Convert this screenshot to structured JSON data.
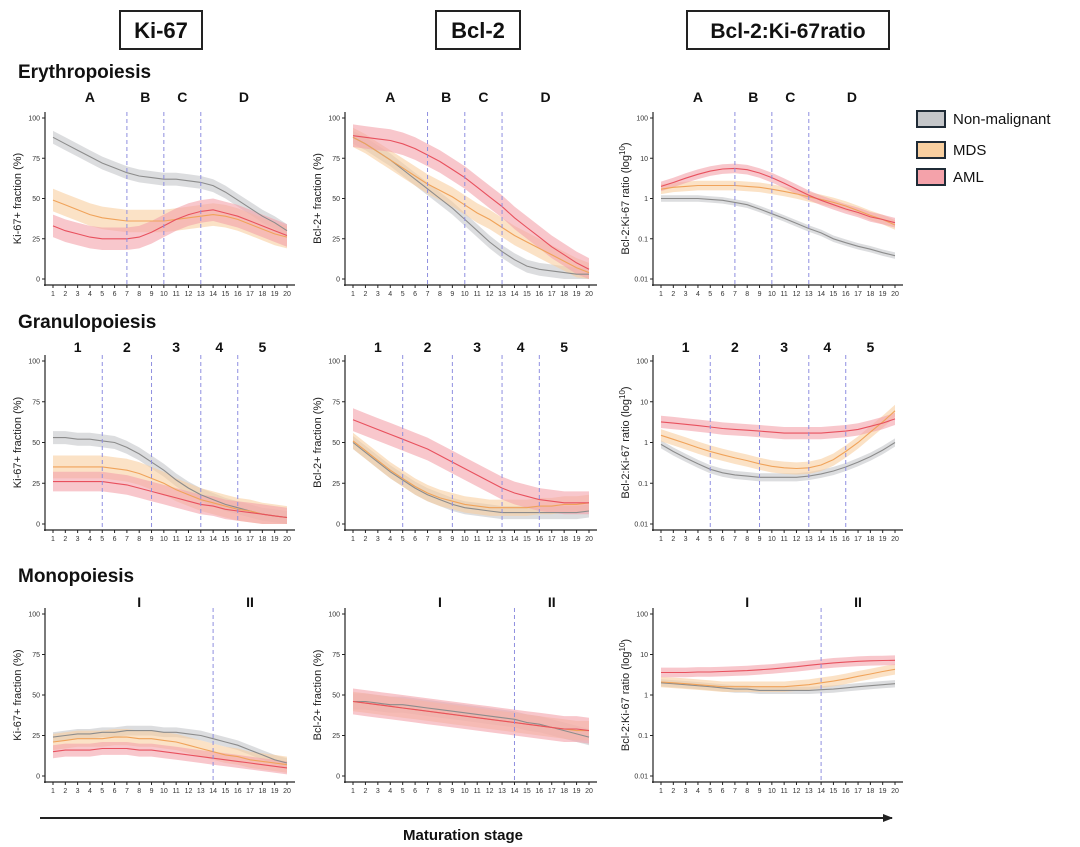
{
  "colors": {
    "non_malignant": "#8c8c8c",
    "mds": "#f0a35a",
    "aml": "#e8515e",
    "band_non_malignant": "#c4c6c9",
    "band_mds": "#f8cfa0",
    "band_aml": "#f4a2aa",
    "vline": "#8f8fe0"
  },
  "column_headers": [
    "Ki-67",
    "Bcl-2",
    "Bcl-2:Ki-67ratio"
  ],
  "row_titles": [
    "Erythropoiesis",
    "Granulopoiesis",
    "Monopoiesis"
  ],
  "legend": [
    {
      "key": "non_malignant",
      "label": "Non-malignant"
    },
    {
      "key": "mds",
      "label": "MDS"
    },
    {
      "key": "aml",
      "label": "AML"
    }
  ],
  "x_axis_label": "Maturation stage",
  "x_ticks": [
    "1",
    "2",
    "3",
    "4",
    "5",
    "6",
    "7",
    "8",
    "9",
    "10",
    "11",
    "12",
    "13",
    "14",
    "15",
    "16",
    "17",
    "18",
    "19",
    "20"
  ],
  "y_labels": {
    "ki67": "Ki-67+ fraction (%)",
    "bcl2": "Bcl-2+ fraction (%)",
    "ratio_prefix": "Bcl-2:Ki-67 ratio (log",
    "ratio_sup": "10",
    "ratio_suffix": ")"
  },
  "y_ticks": {
    "linear": [
      "0",
      "25",
      "50",
      "75",
      "100"
    ],
    "log": [
      "0.01",
      "0.1",
      "1",
      "10",
      "100"
    ]
  },
  "chart_data": [
    {
      "row": "Erythropoiesis",
      "column": "Ki-67",
      "type": "line",
      "yscale": "linear",
      "ylim": [
        0,
        100
      ],
      "x": [
        1,
        2,
        3,
        4,
        5,
        6,
        7,
        8,
        9,
        10,
        11,
        12,
        13,
        14,
        15,
        16,
        17,
        18,
        19,
        20
      ],
      "stage_boundaries": [
        7,
        10,
        13
      ],
      "stage_labels": [
        {
          "label": "A",
          "x": 4
        },
        {
          "label": "B",
          "x": 8.5
        },
        {
          "label": "C",
          "x": 11.5
        },
        {
          "label": "D",
          "x": 16.5
        }
      ],
      "series": [
        {
          "name": "Non-malignant",
          "values": [
            88,
            84,
            80,
            76,
            72,
            69,
            66,
            64,
            63,
            62,
            62,
            61,
            60,
            58,
            54,
            49,
            44,
            39,
            35,
            30
          ],
          "band": 4
        },
        {
          "name": "MDS",
          "values": [
            49,
            46,
            43,
            40,
            38,
            37,
            36,
            36,
            36,
            36,
            37,
            38,
            39,
            40,
            39,
            37,
            34,
            31,
            28,
            26
          ],
          "band": 7
        },
        {
          "name": "AML",
          "values": [
            33,
            30,
            28,
            26,
            25,
            25,
            25,
            26,
            29,
            33,
            37,
            40,
            42,
            43,
            41,
            39,
            36,
            33,
            30,
            27
          ],
          "band": 7
        }
      ]
    },
    {
      "row": "Erythropoiesis",
      "column": "Bcl-2",
      "type": "line",
      "yscale": "linear",
      "ylim": [
        0,
        100
      ],
      "x": [
        1,
        2,
        3,
        4,
        5,
        6,
        7,
        8,
        9,
        10,
        11,
        12,
        13,
        14,
        15,
        16,
        17,
        18,
        19,
        20
      ],
      "stage_boundaries": [
        7,
        10,
        13
      ],
      "stage_labels": [
        {
          "label": "A",
          "x": 4
        },
        {
          "label": "B",
          "x": 8.5
        },
        {
          "label": "C",
          "x": 11.5
        },
        {
          "label": "D",
          "x": 16.5
        }
      ],
      "series": [
        {
          "name": "Non-malignant",
          "values": [
            88,
            84,
            79,
            74,
            68,
            62,
            56,
            50,
            44,
            37,
            30,
            23,
            17,
            12,
            8,
            6,
            5,
            4,
            3,
            3
          ],
          "band": 4
        },
        {
          "name": "MDS",
          "values": [
            88,
            84,
            79,
            74,
            69,
            64,
            59,
            55,
            51,
            46,
            41,
            37,
            32,
            27,
            23,
            19,
            15,
            11,
            7,
            4
          ],
          "band": 6
        },
        {
          "name": "AML",
          "values": [
            89,
            88,
            87,
            86,
            84,
            81,
            77,
            73,
            68,
            63,
            57,
            51,
            45,
            38,
            32,
            26,
            20,
            15,
            10,
            6
          ],
          "band": 7
        }
      ]
    },
    {
      "row": "Erythropoiesis",
      "column": "Bcl-2:Ki-67ratio",
      "type": "line",
      "yscale": "log",
      "ylim": [
        0.01,
        100
      ],
      "x": [
        1,
        2,
        3,
        4,
        5,
        6,
        7,
        8,
        9,
        10,
        11,
        12,
        13,
        14,
        15,
        16,
        17,
        18,
        19,
        20
      ],
      "stage_boundaries": [
        7,
        10,
        13
      ],
      "stage_labels": [
        {
          "label": "A",
          "x": 4
        },
        {
          "label": "B",
          "x": 8.5
        },
        {
          "label": "C",
          "x": 11.5
        },
        {
          "label": "D",
          "x": 16.5
        }
      ],
      "series": [
        {
          "name": "Non-malignant",
          "values": [
            1.0,
            1.0,
            1.0,
            1.0,
            0.95,
            0.9,
            0.8,
            0.7,
            0.55,
            0.42,
            0.32,
            0.24,
            0.18,
            0.14,
            0.1,
            0.08,
            0.065,
            0.055,
            0.045,
            0.038
          ],
          "band": 0.08
        },
        {
          "name": "MDS",
          "values": [
            1.7,
            1.9,
            2.0,
            2.1,
            2.1,
            2.1,
            2.1,
            2.0,
            1.9,
            1.7,
            1.5,
            1.3,
            1.1,
            0.95,
            0.8,
            0.65,
            0.5,
            0.38,
            0.3,
            0.22
          ],
          "band": 0.12
        },
        {
          "name": "AML",
          "values": [
            2.0,
            2.5,
            3.2,
            4.0,
            4.8,
            5.4,
            5.6,
            5.2,
            4.3,
            3.3,
            2.4,
            1.7,
            1.2,
            0.9,
            0.7,
            0.55,
            0.45,
            0.35,
            0.3,
            0.25
          ],
          "band": 0.12
        }
      ]
    },
    {
      "row": "Granulopoiesis",
      "column": "Ki-67",
      "type": "line",
      "yscale": "linear",
      "ylim": [
        0,
        100
      ],
      "x": [
        1,
        2,
        3,
        4,
        5,
        6,
        7,
        8,
        9,
        10,
        11,
        12,
        13,
        14,
        15,
        16,
        17,
        18,
        19,
        20
      ],
      "stage_boundaries": [
        5,
        9,
        13,
        16
      ],
      "stage_labels": [
        {
          "label": "1",
          "x": 3
        },
        {
          "label": "2",
          "x": 7
        },
        {
          "label": "3",
          "x": 11
        },
        {
          "label": "4",
          "x": 14.5
        },
        {
          "label": "5",
          "x": 18
        }
      ],
      "series": [
        {
          "name": "Non-malignant",
          "values": [
            53,
            53,
            52,
            52,
            51,
            50,
            47,
            43,
            38,
            33,
            27,
            22,
            18,
            15,
            12,
            10,
            8,
            6,
            5,
            4
          ],
          "band": 4
        },
        {
          "name": "MDS",
          "values": [
            35,
            35,
            35,
            35,
            35,
            34,
            33,
            31,
            28,
            25,
            21,
            18,
            15,
            13,
            11,
            9,
            8,
            6,
            5,
            4
          ],
          "band": 7
        },
        {
          "name": "AML",
          "values": [
            26,
            26,
            26,
            26,
            26,
            25,
            24,
            22,
            20,
            18,
            16,
            14,
            12,
            11,
            9,
            8,
            7,
            6,
            5,
            4
          ],
          "band": 6
        }
      ]
    },
    {
      "row": "Granulopoiesis",
      "column": "Bcl-2",
      "type": "line",
      "yscale": "linear",
      "ylim": [
        0,
        100
      ],
      "x": [
        1,
        2,
        3,
        4,
        5,
        6,
        7,
        8,
        9,
        10,
        11,
        12,
        13,
        14,
        15,
        16,
        17,
        18,
        19,
        20
      ],
      "stage_boundaries": [
        5,
        9,
        13,
        16
      ],
      "stage_labels": [
        {
          "label": "1",
          "x": 3
        },
        {
          "label": "2",
          "x": 7
        },
        {
          "label": "3",
          "x": 11
        },
        {
          "label": "4",
          "x": 14.5
        },
        {
          "label": "5",
          "x": 18
        }
      ],
      "series": [
        {
          "name": "Non-malignant",
          "values": [
            50,
            44,
            38,
            32,
            27,
            22,
            18,
            15,
            12,
            10,
            9,
            8,
            7,
            7,
            7,
            7,
            7,
            7,
            7,
            8
          ],
          "band": 4
        },
        {
          "name": "MDS",
          "values": [
            51,
            45,
            39,
            33,
            28,
            23,
            19,
            16,
            14,
            12,
            11,
            10,
            10,
            10,
            10,
            11,
            11,
            12,
            12,
            13
          ],
          "band": 5
        },
        {
          "name": "AML",
          "values": [
            64,
            61,
            58,
            55,
            52,
            49,
            46,
            42,
            38,
            34,
            30,
            26,
            22,
            19,
            17,
            15,
            14,
            13,
            13,
            13
          ],
          "band": 7
        }
      ]
    },
    {
      "row": "Granulopoiesis",
      "column": "Bcl-2:Ki-67ratio",
      "type": "line",
      "yscale": "log",
      "ylim": [
        0.01,
        100
      ],
      "x": [
        1,
        2,
        3,
        4,
        5,
        6,
        7,
        8,
        9,
        10,
        11,
        12,
        13,
        14,
        15,
        16,
        17,
        18,
        19,
        20
      ],
      "stage_boundaries": [
        5,
        9,
        13,
        16
      ],
      "stage_labels": [
        {
          "label": "1",
          "x": 3
        },
        {
          "label": "2",
          "x": 7
        },
        {
          "label": "3",
          "x": 11
        },
        {
          "label": "4",
          "x": 14.5
        },
        {
          "label": "5",
          "x": 18
        }
      ],
      "series": [
        {
          "name": "Non-malignant",
          "values": [
            0.9,
            0.6,
            0.42,
            0.3,
            0.22,
            0.18,
            0.16,
            0.15,
            0.14,
            0.14,
            0.14,
            0.14,
            0.15,
            0.17,
            0.2,
            0.25,
            0.33,
            0.45,
            0.65,
            1.0
          ],
          "band": 0.1
        },
        {
          "name": "MDS",
          "values": [
            1.5,
            1.2,
            0.95,
            0.75,
            0.6,
            0.5,
            0.42,
            0.36,
            0.3,
            0.26,
            0.24,
            0.23,
            0.24,
            0.28,
            0.38,
            0.6,
            1.0,
            1.8,
            3.2,
            6.0
          ],
          "band": 0.15
        },
        {
          "name": "AML",
          "values": [
            3.2,
            3.0,
            2.8,
            2.6,
            2.4,
            2.2,
            2.1,
            2.0,
            1.9,
            1.8,
            1.7,
            1.7,
            1.7,
            1.7,
            1.8,
            1.9,
            2.1,
            2.5,
            3.0,
            3.8
          ],
          "band": 0.15
        }
      ]
    },
    {
      "row": "Monopoiesis",
      "column": "Ki-67",
      "type": "line",
      "yscale": "linear",
      "ylim": [
        0,
        100
      ],
      "x": [
        1,
        2,
        3,
        4,
        5,
        6,
        7,
        8,
        9,
        10,
        11,
        12,
        13,
        14,
        15,
        16,
        17,
        18,
        19,
        20
      ],
      "stage_boundaries": [
        14
      ],
      "stage_labels": [
        {
          "label": "I",
          "x": 8
        },
        {
          "label": "II",
          "x": 17
        }
      ],
      "series": [
        {
          "name": "Non-malignant",
          "values": [
            24,
            25,
            26,
            26,
            27,
            27,
            28,
            28,
            28,
            27,
            27,
            26,
            25,
            23,
            21,
            19,
            16,
            13,
            10,
            8
          ],
          "band": 3
        },
        {
          "name": "MDS",
          "values": [
            21,
            22,
            23,
            23,
            23,
            24,
            24,
            23,
            23,
            22,
            21,
            19,
            17,
            15,
            13,
            12,
            10,
            9,
            8,
            7
          ],
          "band": 5
        },
        {
          "name": "AML",
          "values": [
            15,
            16,
            16,
            16,
            17,
            17,
            17,
            16,
            16,
            15,
            14,
            13,
            12,
            11,
            10,
            9,
            8,
            7,
            6,
            5
          ],
          "band": 4
        }
      ]
    },
    {
      "row": "Monopoiesis",
      "column": "Bcl-2",
      "type": "line",
      "yscale": "linear",
      "ylim": [
        0,
        100
      ],
      "x": [
        1,
        2,
        3,
        4,
        5,
        6,
        7,
        8,
        9,
        10,
        11,
        12,
        13,
        14,
        15,
        16,
        17,
        18,
        19,
        20
      ],
      "stage_boundaries": [
        14
      ],
      "stage_labels": [
        {
          "label": "I",
          "x": 8
        },
        {
          "label": "II",
          "x": 17
        }
      ],
      "series": [
        {
          "name": "Non-malignant",
          "values": [
            46,
            46,
            45,
            44,
            44,
            43,
            42,
            41,
            40,
            39,
            38,
            37,
            36,
            35,
            33,
            32,
            30,
            28,
            26,
            24
          ],
          "band": 5
        },
        {
          "name": "MDS",
          "values": [
            46,
            45,
            44,
            43,
            42,
            41,
            40,
            39,
            38,
            37,
            36,
            35,
            34,
            33,
            32,
            31,
            30,
            29,
            28,
            28
          ],
          "band": 6
        },
        {
          "name": "AML",
          "values": [
            46,
            45,
            44,
            43,
            42,
            41,
            40,
            39,
            38,
            37,
            36,
            35,
            34,
            33,
            32,
            31,
            30,
            29,
            29,
            28
          ],
          "band": 8
        }
      ]
    },
    {
      "row": "Monopoiesis",
      "column": "Bcl-2:Ki-67ratio",
      "type": "line",
      "yscale": "log",
      "ylim": [
        0.01,
        100
      ],
      "x": [
        1,
        2,
        3,
        4,
        5,
        6,
        7,
        8,
        9,
        10,
        11,
        12,
        13,
        14,
        15,
        16,
        17,
        18,
        19,
        20
      ],
      "stage_boundaries": [
        14
      ],
      "stage_labels": [
        {
          "label": "I",
          "x": 8
        },
        {
          "label": "II",
          "x": 17
        }
      ],
      "series": [
        {
          "name": "Non-malignant",
          "values": [
            2.0,
            1.9,
            1.8,
            1.7,
            1.6,
            1.5,
            1.4,
            1.4,
            1.3,
            1.3,
            1.3,
            1.3,
            1.3,
            1.35,
            1.4,
            1.5,
            1.6,
            1.7,
            1.8,
            1.9
          ],
          "band": 0.09
        },
        {
          "name": "MDS",
          "values": [
            2.1,
            2.0,
            1.9,
            1.8,
            1.7,
            1.6,
            1.6,
            1.6,
            1.6,
            1.6,
            1.6,
            1.7,
            1.8,
            2.0,
            2.2,
            2.5,
            2.9,
            3.3,
            3.8,
            4.3
          ],
          "band": 0.13
        },
        {
          "name": "AML",
          "values": [
            3.6,
            3.6,
            3.6,
            3.7,
            3.7,
            3.8,
            3.9,
            4.0,
            4.2,
            4.4,
            4.7,
            5.0,
            5.4,
            5.8,
            6.2,
            6.5,
            6.8,
            7.0,
            7.1,
            7.2
          ],
          "band": 0.12
        }
      ]
    }
  ]
}
